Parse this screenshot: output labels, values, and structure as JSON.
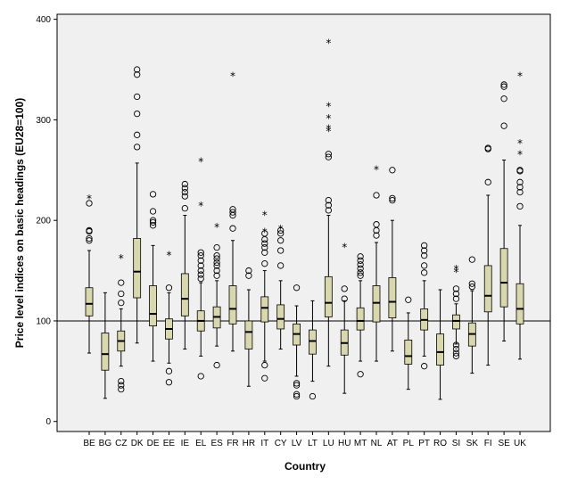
{
  "chart_data": {
    "type": "boxplot",
    "xlabel": "Country",
    "ylabel": "Price level indices on basic headings (EU28=100)",
    "ylim": [
      -10,
      405
    ],
    "yticks": [
      0,
      100,
      200,
      300,
      400
    ],
    "reference_line": 100,
    "colors": {
      "box_fill": "#d9d7ae",
      "plot_background": "#f0f0f0",
      "frame": "#000000"
    },
    "categories": [
      "BE",
      "BG",
      "CZ",
      "DK",
      "DE",
      "EE",
      "IE",
      "EL",
      "ES",
      "FR",
      "HR",
      "IT",
      "CY",
      "LV",
      "LT",
      "LU",
      "HU",
      "MT",
      "NL",
      "AT",
      "PL",
      "PT",
      "RO",
      "SI",
      "SK",
      "FI",
      "SE",
      "UK"
    ],
    "boxes": [
      {
        "country": "BE",
        "whisker_low": 68,
        "q1": 105,
        "median": 117,
        "q3": 133,
        "whisker_high": 170,
        "outliers": [
          180,
          182,
          189,
          190,
          217
        ],
        "extremes": [
          223
        ]
      },
      {
        "country": "BG",
        "whisker_low": 23,
        "q1": 51,
        "median": 67,
        "q3": 88,
        "whisker_high": 128,
        "outliers": [],
        "extremes": []
      },
      {
        "country": "CZ",
        "whisker_low": 55,
        "q1": 70,
        "median": 80,
        "q3": 90,
        "whisker_high": 112,
        "outliers": [
          32,
          36,
          40,
          118,
          127,
          138
        ],
        "extremes": [
          164
        ]
      },
      {
        "country": "DK",
        "whisker_low": 78,
        "q1": 123,
        "median": 149,
        "q3": 182,
        "whisker_high": 257,
        "outliers": [
          273,
          285,
          306,
          323,
          345,
          350
        ],
        "extremes": []
      },
      {
        "country": "DE",
        "whisker_low": 60,
        "q1": 95,
        "median": 107,
        "q3": 135,
        "whisker_high": 175,
        "outliers": [
          195,
          198,
          200,
          209,
          226
        ],
        "extremes": []
      },
      {
        "country": "EE",
        "whisker_low": 58,
        "q1": 82,
        "median": 92,
        "q3": 102,
        "whisker_high": 128,
        "outliers": [
          39,
          50,
          133
        ],
        "extremes": [
          167
        ]
      },
      {
        "country": "IE",
        "whisker_low": 72,
        "q1": 105,
        "median": 122,
        "q3": 147,
        "whisker_high": 205,
        "outliers": [
          212,
          224,
          228,
          232,
          236
        ],
        "extremes": []
      },
      {
        "country": "EL",
        "whisker_low": 65,
        "q1": 90,
        "median": 100,
        "q3": 110,
        "whisker_high": 138,
        "outliers": [
          45,
          142,
          146,
          150,
          155,
          160,
          165,
          168
        ],
        "extremes": [
          216,
          260
        ]
      },
      {
        "country": "ES",
        "whisker_low": 75,
        "q1": 93,
        "median": 104,
        "q3": 114,
        "whisker_high": 140,
        "outliers": [
          56,
          145,
          150,
          155,
          158,
          162,
          165,
          173
        ],
        "extremes": [
          195
        ]
      },
      {
        "country": "FR",
        "whisker_low": 70,
        "q1": 97,
        "median": 112,
        "q3": 135,
        "whisker_high": 180,
        "outliers": [
          192,
          205,
          208,
          211
        ],
        "extremes": [
          345
        ]
      },
      {
        "country": "HR",
        "whisker_low": 35,
        "q1": 72,
        "median": 89,
        "q3": 100,
        "whisker_high": 131,
        "outliers": [
          145,
          150
        ],
        "extremes": []
      },
      {
        "country": "IT",
        "whisker_low": 60,
        "q1": 99,
        "median": 113,
        "q3": 124,
        "whisker_high": 150,
        "outliers": [
          43,
          56,
          157,
          168,
          173,
          177,
          181,
          187
        ],
        "extremes": [
          190,
          207
        ]
      },
      {
        "country": "CY",
        "whisker_low": 72,
        "q1": 92,
        "median": 102,
        "q3": 116,
        "whisker_high": 140,
        "outliers": [
          155,
          170,
          180,
          187,
          190
        ],
        "extremes": [
          193
        ]
      },
      {
        "country": "LV",
        "whisker_low": 45,
        "q1": 76,
        "median": 87,
        "q3": 97,
        "whisker_high": 115,
        "outliers": [
          25,
          27,
          36,
          38,
          133
        ],
        "extremes": []
      },
      {
        "country": "LT",
        "whisker_low": 40,
        "q1": 67,
        "median": 80,
        "q3": 91,
        "whisker_high": 120,
        "outliers": [
          25
        ],
        "extremes": []
      },
      {
        "country": "LU",
        "whisker_low": 55,
        "q1": 104,
        "median": 118,
        "q3": 144,
        "whisker_high": 205,
        "outliers": [
          210,
          215,
          220,
          263,
          266
        ],
        "extremes": [
          290,
          293,
          303,
          315,
          378
        ]
      },
      {
        "country": "HU",
        "whisker_low": 28,
        "q1": 66,
        "median": 78,
        "q3": 91,
        "whisker_high": 120,
        "outliers": [
          122,
          132
        ],
        "extremes": [
          175
        ]
      },
      {
        "country": "MT",
        "whisker_low": 60,
        "q1": 91,
        "median": 100,
        "q3": 113,
        "whisker_high": 140,
        "outliers": [
          47,
          145,
          148,
          152,
          156,
          160,
          164
        ],
        "extremes": []
      },
      {
        "country": "NL",
        "whisker_low": 60,
        "q1": 99,
        "median": 118,
        "q3": 135,
        "whisker_high": 178,
        "outliers": [
          185,
          190,
          196,
          225
        ],
        "extremes": [
          252
        ]
      },
      {
        "country": "AT",
        "whisker_low": 70,
        "q1": 103,
        "median": 119,
        "q3": 143,
        "whisker_high": 200,
        "outliers": [
          220,
          222,
          250
        ],
        "extremes": []
      },
      {
        "country": "PL",
        "whisker_low": 32,
        "q1": 57,
        "median": 65,
        "q3": 81,
        "whisker_high": 108,
        "outliers": [
          121
        ],
        "extremes": []
      },
      {
        "country": "PT",
        "whisker_low": 65,
        "q1": 91,
        "median": 101,
        "q3": 112,
        "whisker_high": 140,
        "outliers": [
          55,
          148,
          155,
          165,
          170,
          175
        ],
        "extremes": []
      },
      {
        "country": "RO",
        "whisker_low": 22,
        "q1": 56,
        "median": 69,
        "q3": 87,
        "whisker_high": 131,
        "outliers": [],
        "extremes": []
      },
      {
        "country": "SI",
        "whisker_low": 77,
        "q1": 92,
        "median": 100,
        "q3": 106,
        "whisker_high": 117,
        "outliers": [
          65,
          68,
          72,
          76,
          122,
          127,
          132
        ],
        "extremes": [
          150,
          153
        ]
      },
      {
        "country": "SK",
        "whisker_low": 48,
        "q1": 75,
        "median": 87,
        "q3": 98,
        "whisker_high": 130,
        "outliers": [
          134,
          137,
          161
        ],
        "extremes": []
      },
      {
        "country": "FI",
        "whisker_low": 56,
        "q1": 109,
        "median": 125,
        "q3": 155,
        "whisker_high": 225,
        "outliers": [
          238,
          271,
          272
        ],
        "extremes": []
      },
      {
        "country": "SE",
        "whisker_low": 80,
        "q1": 114,
        "median": 138,
        "q3": 172,
        "whisker_high": 260,
        "outliers": [
          294,
          321,
          333,
          335
        ],
        "extremes": []
      },
      {
        "country": "UK",
        "whisker_low": 62,
        "q1": 97,
        "median": 112,
        "q3": 137,
        "whisker_high": 195,
        "outliers": [
          214,
          228,
          233,
          238,
          249,
          250
        ],
        "extremes": [
          267,
          278,
          345
        ]
      }
    ]
  }
}
